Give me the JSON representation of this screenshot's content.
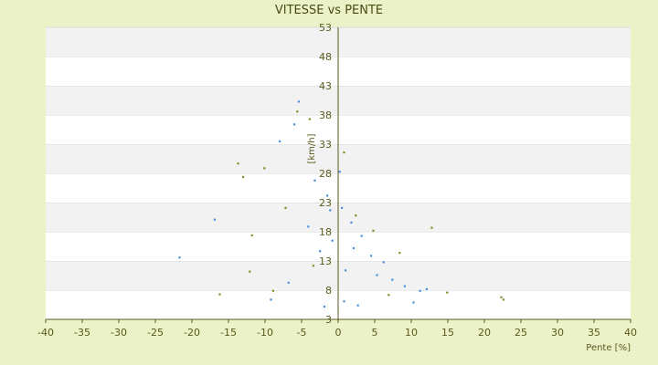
{
  "chart_data": {
    "type": "scatter",
    "title": "VITESSE vs PENTE",
    "xlabel": "Pente [%]",
    "ylabel": "[km/h]",
    "xlim": [
      -40,
      40
    ],
    "ylim": [
      3,
      53
    ],
    "xticks": [
      -40,
      -35,
      -30,
      -25,
      -20,
      -15,
      -10,
      -5,
      0,
      5,
      10,
      15,
      20,
      25,
      30,
      35,
      40
    ],
    "yticks": [
      3,
      8,
      13,
      18,
      23,
      28,
      33,
      38,
      43,
      48,
      53
    ],
    "grid": "horizontal alternating bands",
    "series": [
      {
        "color": "#4a90d9",
        "points": [
          [
            -5.4,
            40.3
          ],
          [
            -6.0,
            36.4
          ],
          [
            -8.0,
            33.5
          ],
          [
            -21.7,
            13.6
          ],
          [
            -16.9,
            20.1
          ],
          [
            -3.2,
            26.8
          ],
          [
            -1.5,
            24.2
          ],
          [
            0.5,
            22.1
          ],
          [
            1.8,
            19.6
          ],
          [
            3.2,
            17.3
          ],
          [
            -0.8,
            16.5
          ],
          [
            2.1,
            15.2
          ],
          [
            4.5,
            13.9
          ],
          [
            6.2,
            12.8
          ],
          [
            -2.5,
            14.7
          ],
          [
            -4.1,
            18.9
          ],
          [
            0.2,
            28.3
          ],
          [
            -1.1,
            21.7
          ],
          [
            1.0,
            11.4
          ],
          [
            5.3,
            10.6
          ],
          [
            7.4,
            9.8
          ],
          [
            9.1,
            8.7
          ],
          [
            11.2,
            7.9
          ],
          [
            -6.8,
            9.3
          ],
          [
            -9.2,
            6.4
          ],
          [
            0.8,
            6.1
          ],
          [
            2.7,
            5.4
          ],
          [
            -1.9,
            5.2
          ],
          [
            12.1,
            8.2
          ],
          [
            10.3,
            5.9
          ]
        ]
      },
      {
        "color": "#8a8a2a",
        "points": [
          [
            -5.6,
            38.6
          ],
          [
            -3.9,
            37.3
          ],
          [
            0.8,
            31.6
          ],
          [
            -13.7,
            29.7
          ],
          [
            -13.0,
            27.4
          ],
          [
            -10.1,
            28.9
          ],
          [
            -16.2,
            7.3
          ],
          [
            14.9,
            7.6
          ],
          [
            22.3,
            6.8
          ],
          [
            22.6,
            6.4
          ],
          [
            -12.1,
            11.2
          ],
          [
            -11.8,
            17.4
          ],
          [
            -7.2,
            22.1
          ],
          [
            2.4,
            20.8
          ],
          [
            4.8,
            18.2
          ],
          [
            8.4,
            14.4
          ],
          [
            12.8,
            18.7
          ],
          [
            -8.9,
            7.9
          ],
          [
            6.9,
            7.2
          ],
          [
            -3.4,
            12.2
          ]
        ]
      }
    ]
  }
}
